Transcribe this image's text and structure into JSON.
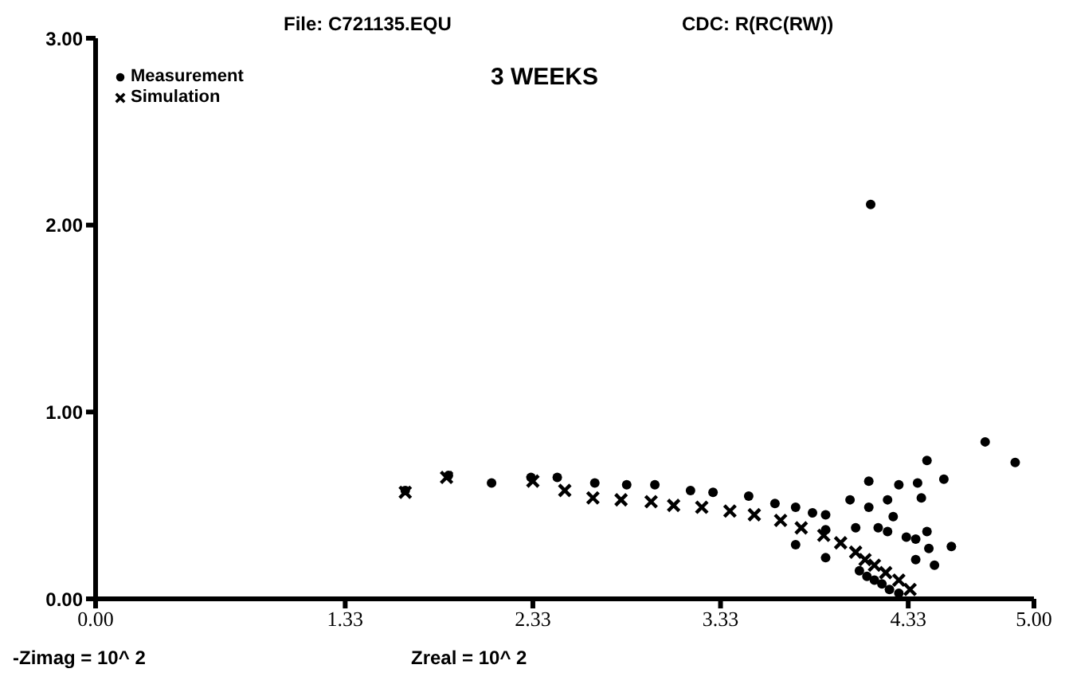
{
  "chart_data": {
    "type": "scatter",
    "title": "File: C721135.EQU",
    "subtitle": "CDC: R(RC(RW))",
    "annotations": [
      "3 WEEKS"
    ],
    "xlabel": "Zreal = 10^ 2",
    "ylabel": "-Zimag = 10^ 2",
    "xlim": [
      0,
      5
    ],
    "xticks": [
      {
        "value": 0,
        "label": "0.00"
      },
      1.33,
      2.33,
      3.33,
      4.33,
      {
        "value": 5,
        "label": "5.00"
      }
    ],
    "ylim": [
      0,
      3
    ],
    "yticks": [
      {
        "value": 0,
        "label": "0.00"
      },
      {
        "value": 1,
        "label": "1.00"
      },
      {
        "value": 2,
        "label": "2.00"
      },
      {
        "value": 3,
        "label": "3.00"
      }
    ],
    "grid": false,
    "legend": "top left",
    "series": [
      {
        "name": "Measurement",
        "color": "#000000",
        "marker": "circle",
        "x": [
          1.65,
          1.88,
          2.11,
          2.32,
          2.46,
          2.66,
          2.83,
          2.98,
          3.17,
          3.29,
          3.48,
          3.62,
          3.73,
          3.82,
          3.89,
          3.73,
          3.89,
          3.89,
          4.02,
          4.12,
          4.12,
          4.28,
          4.22,
          4.25,
          4.38,
          4.4,
          4.43,
          4.52,
          4.17,
          4.22,
          4.05,
          4.37,
          4.32,
          4.37,
          4.43,
          4.44,
          4.56,
          4.47,
          4.74,
          4.9,
          4.07,
          4.11,
          4.15,
          4.19,
          4.23,
          4.28,
          4.13
        ],
        "values": [
          0.58,
          0.66,
          0.62,
          0.65,
          0.65,
          0.62,
          0.61,
          0.61,
          0.58,
          0.57,
          0.55,
          0.51,
          0.49,
          0.46,
          0.45,
          0.29,
          0.37,
          0.22,
          0.53,
          0.63,
          0.49,
          0.61,
          0.53,
          0.44,
          0.62,
          0.54,
          0.74,
          0.64,
          0.38,
          0.36,
          0.38,
          0.21,
          0.33,
          0.32,
          0.36,
          0.27,
          0.28,
          0.18,
          0.84,
          0.73,
          0.15,
          0.12,
          0.1,
          0.08,
          0.05,
          0.03,
          2.11
        ]
      },
      {
        "name": "Simulation",
        "color": "#000000",
        "marker": "cross",
        "x": [
          1.65,
          1.87,
          2.33,
          2.5,
          2.65,
          2.8,
          2.96,
          3.08,
          3.23,
          3.38,
          3.51,
          3.65,
          3.76,
          3.88,
          3.97,
          4.05,
          4.1,
          4.15,
          4.21,
          4.28,
          4.34
        ],
        "values": [
          0.57,
          0.65,
          0.63,
          0.58,
          0.54,
          0.53,
          0.52,
          0.5,
          0.49,
          0.47,
          0.45,
          0.42,
          0.38,
          0.34,
          0.3,
          0.25,
          0.21,
          0.18,
          0.14,
          0.1,
          0.05
        ]
      }
    ]
  }
}
